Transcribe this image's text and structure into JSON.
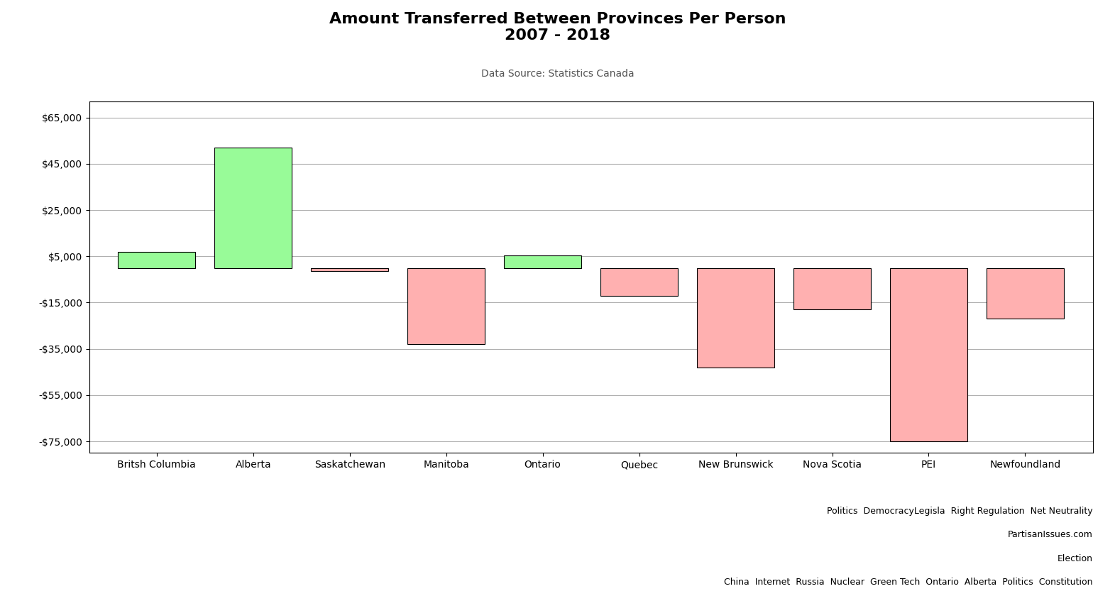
{
  "chart_data": {
    "type": "bar",
    "title": "Amount Transferred Between Provinces Per Person\n2007 - 2018",
    "subtitle": "Data Source: Statistics Canada",
    "categories": [
      "Britsh Columbia",
      "Alberta",
      "Saskatchewan",
      "Manitoba",
      "Ontario",
      "Quebec",
      "New Brunswick",
      "Nova Scotia",
      "PEI",
      "Newfoundland"
    ],
    "values": [
      7000,
      52000,
      -1500,
      -33000,
      5500,
      -12000,
      -43000,
      -18000,
      -75000,
      -22000
    ],
    "colors": [
      "#98FB98",
      "#98FB98",
      "#FFB0B0",
      "#FFB0B0",
      "#98FB98",
      "#FFB0B0",
      "#FFB0B0",
      "#FFB0B0",
      "#FFB0B0",
      "#FFB0B0"
    ],
    "ylim": [
      -80000,
      72000
    ],
    "yticks": [
      {
        "value": -75000,
        "label": "-$75,000"
      },
      {
        "value": -55000,
        "label": "-$55,000"
      },
      {
        "value": -35000,
        "label": "-$35,000"
      },
      {
        "value": -15000,
        "label": "-$15,000"
      },
      {
        "value": 5000,
        "label": "$5,000"
      },
      {
        "value": 25000,
        "label": "$25,000"
      },
      {
        "value": 45000,
        "label": "$45,000"
      },
      {
        "value": 65000,
        "label": "$65,000"
      }
    ],
    "grid": true,
    "annotations": [
      "Politics  DemocracyLegisla  Right Regulation  Net Neutrality",
      "PartisanIssues.com",
      "Election",
      "China  Internet  Russia  Nuclear  Green Tech  Ontario  Alberta  Politics  Constitution"
    ]
  }
}
